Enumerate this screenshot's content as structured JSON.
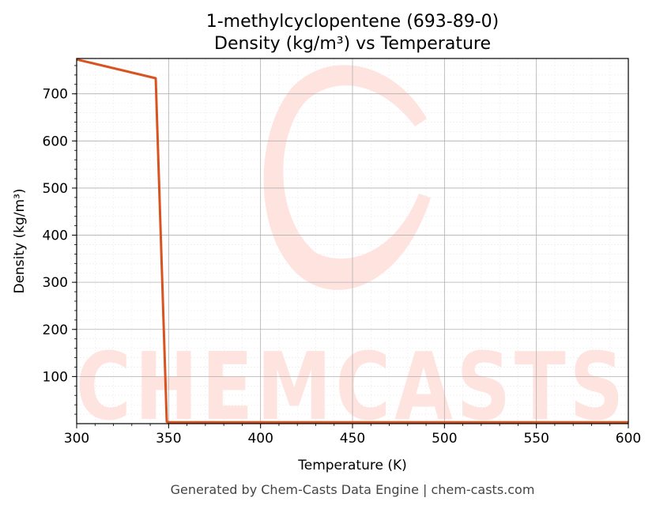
{
  "chart_data": {
    "type": "line",
    "title_line1": "1-methylcyclopentene (693-89-0)",
    "title_line2": "Density (kg/m³) vs Temperature",
    "xlabel": "Temperature (K)",
    "ylabel": "Density (kg/m³)",
    "xlim": [
      300,
      600
    ],
    "ylim": [
      0,
      775
    ],
    "xticks": [
      300,
      350,
      400,
      450,
      500,
      550,
      600
    ],
    "yticks": [
      100,
      200,
      300,
      400,
      500,
      600,
      700
    ],
    "grid": true,
    "series": [
      {
        "color": "#d95320",
        "x": [
          300,
          343,
          349,
          350,
          600
        ],
        "y": [
          773,
          733,
          4,
          3,
          3
        ]
      }
    ]
  },
  "watermark": {
    "text": "CHEMCASTS",
    "color": "#ffe3df"
  },
  "footer": "Generated by Chem-Casts Data Engine | chem-casts.com"
}
